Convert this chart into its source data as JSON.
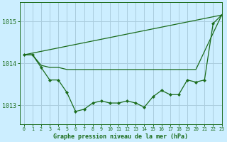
{
  "title": "Graphe pression niveau de la mer (hPa)",
  "background_color": "#cceeff",
  "grid_color": "#aaccdd",
  "line_color": "#1a6b1a",
  "xlim": [
    -0.5,
    23
  ],
  "ylim": [
    1012.55,
    1015.45
  ],
  "yticks": [
    1013,
    1014,
    1015
  ],
  "xticks": [
    0,
    1,
    2,
    3,
    4,
    5,
    6,
    7,
    8,
    9,
    10,
    11,
    12,
    13,
    14,
    15,
    16,
    17,
    18,
    19,
    20,
    21,
    22,
    23
  ],
  "series_diagonal": {
    "x": [
      0,
      23
    ],
    "y": [
      1014.2,
      1015.15
    ]
  },
  "series_flat": {
    "x": [
      0,
      1,
      2,
      3,
      4,
      5,
      6,
      7,
      8,
      9,
      10,
      11,
      12,
      13,
      14,
      15,
      16,
      17,
      18,
      19,
      20,
      23
    ],
    "y": [
      1014.2,
      1014.2,
      1013.95,
      1013.9,
      1013.9,
      1013.85,
      1013.85,
      1013.85,
      1013.85,
      1013.85,
      1013.85,
      1013.85,
      1013.85,
      1013.85,
      1013.85,
      1013.85,
      1013.85,
      1013.85,
      1013.85,
      1013.85,
      1013.85,
      1015.15
    ]
  },
  "series_curve": {
    "x": [
      0,
      1,
      2,
      3,
      4,
      5,
      6,
      7,
      8,
      9,
      10,
      11,
      12,
      13,
      14,
      15,
      16,
      17,
      18,
      19,
      20,
      21,
      22,
      23
    ],
    "y": [
      1014.2,
      1014.2,
      1013.9,
      1013.6,
      1013.6,
      1013.3,
      1012.85,
      1012.9,
      1013.05,
      1013.1,
      1013.05,
      1013.05,
      1013.1,
      1013.05,
      1012.95,
      1013.2,
      1013.35,
      1013.25,
      1013.25,
      1013.6,
      1013.55,
      1013.6,
      1014.95,
      1015.15
    ]
  }
}
